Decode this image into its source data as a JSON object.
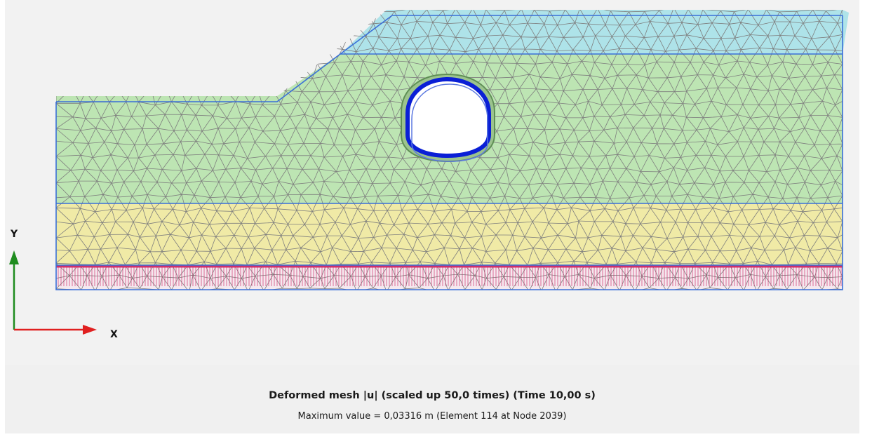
{
  "view": {
    "title": "Deformed mesh |u| (scaled up 50,0 times) (Time 10,00 s)",
    "max_value_text": "Maximum value = 0,03316 m (Element 114 at Node 2039)"
  },
  "axes": {
    "y_label": "Y",
    "x_label": "X"
  },
  "colors": {
    "background": "#f2f2f2",
    "soil_top_cyan": "#aee3e9",
    "soil_green": "#bde5b3",
    "soil_yellow": "#f0eaa6",
    "mesh_lines": "#7e7e7e",
    "boundary_blue": "#3a6fd8",
    "tunnel_lining": "#0a1fd6",
    "fixity_red": "#d0306a",
    "axis_y_green": "#1e8c1e",
    "axis_x_red": "#e02020"
  },
  "icons": [
    "y-axis-arrow-icon",
    "x-axis-arrow-icon"
  ]
}
